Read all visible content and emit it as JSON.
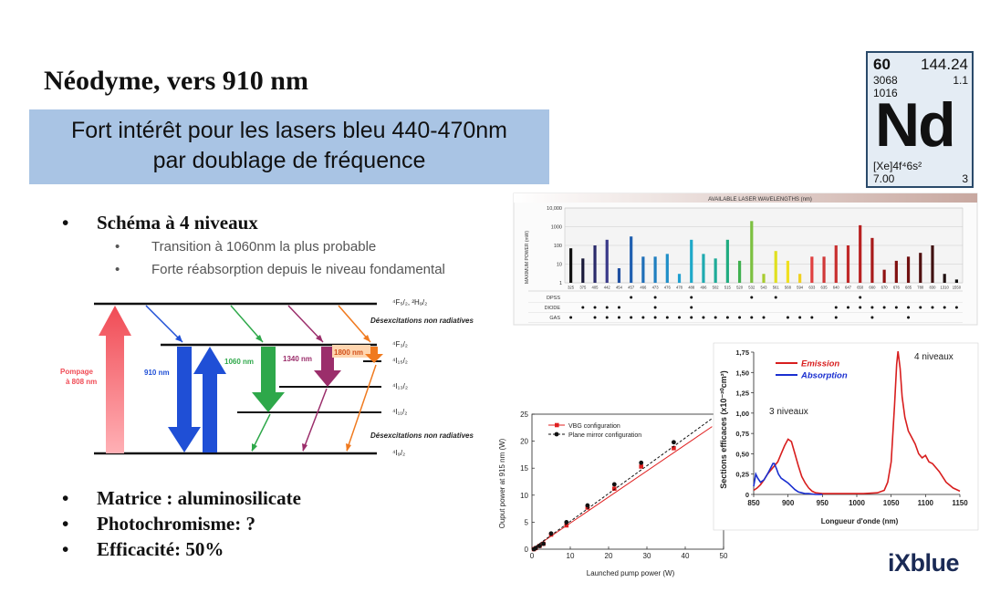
{
  "slide": {
    "title": "Néodyme, vers 910 nm",
    "subtitle_lines": [
      "Fort intérêt pour les lasers bleu 440-470nm",
      "par doublage de fréquence"
    ],
    "scheme_bullet": "Schéma  à 4 niveaux",
    "sub_bullets": [
      "Transition à 1060nm la plus probable",
      "Forte réabsorption depuis le niveau fondamental"
    ],
    "bullets": [
      "Matrice : aluminosilicate",
      "Photochromisme: ?",
      "Efficacité: 50%"
    ],
    "logo_text": "iXblue"
  },
  "element_tile": {
    "atomic_number": "60",
    "atomic_mass": "144.24",
    "boiling_point": "3068",
    "electronegativity": "1.1",
    "melting_point": "1016",
    "symbol": "Nd",
    "configuration": "[Xe]4f⁴6s²",
    "ionization": "7.00",
    "valence": "3"
  },
  "energy_diagram": {
    "level_labels": [
      "⁴F₅/₂, ²H₉/₂",
      "⁴F₃/₂",
      "⁴I₁₅/₂",
      "⁴I₁₃/₂",
      "⁴I₁₁/₂",
      "⁴I₉/₂"
    ],
    "nonradiative_label_top": "Désexcitations non radiatives",
    "nonradiative_label_bottom": "Désexcitations non radiatives",
    "pump_label": [
      "Pompage",
      "à 808 nm"
    ],
    "transitions": [
      "910 nm",
      "1060 nm",
      "1340 nm",
      "1800 nm"
    ],
    "colors": {
      "pump": "#f04b55",
      "blue": "#1f4fd6",
      "green": "#2ea84a",
      "purple": "#9b2e6b",
      "orange": "#f07a1f"
    }
  },
  "chart_data": [
    {
      "type": "bar",
      "title": "AVAILABLE LASER WAVELENGTHS (nm)",
      "ylabel": "MAXIMUM POWER (mW)",
      "yscale": "log",
      "ylim": [
        1,
        10000
      ],
      "yticks": [
        "10,000",
        "1000",
        "100",
        "10",
        "1"
      ],
      "categories": [
        "325",
        "375",
        "405",
        "442",
        "454",
        "457",
        "466",
        "473",
        "476",
        "478",
        "488",
        "496",
        "502",
        "515",
        "520",
        "532",
        "543",
        "561",
        "568",
        "594",
        "633",
        "635",
        "640",
        "647",
        "650",
        "660",
        "670",
        "676",
        "685",
        "780",
        "830",
        "1310",
        "1550"
      ],
      "values": [
        70,
        20,
        100,
        200,
        6,
        300,
        25,
        25,
        35,
        3,
        200,
        35,
        20,
        200,
        15,
        2000,
        3,
        50,
        15,
        3,
        25,
        25,
        100,
        100,
        1200,
        250,
        5,
        15,
        25,
        40,
        100,
        3,
        1.5
      ],
      "bar_colors": [
        "#111111",
        "#1a1a3a",
        "#2a2a6a",
        "#3a3a8a",
        "#1f4fa0",
        "#1f5fb0",
        "#1f6fb8",
        "#1f7fc0",
        "#1f8fc8",
        "#1f9fd0",
        "#1fa8c8",
        "#1faab0",
        "#1fab98",
        "#20ac80",
        "#40b050",
        "#7cc040",
        "#a8cc30",
        "#e0e020",
        "#f0e020",
        "#f0d020",
        "#e04040",
        "#d03838",
        "#c83030",
        "#c02828",
        "#b82020",
        "#a81a1a",
        "#901010",
        "#801010",
        "#701010",
        "#501010",
        "#401010",
        "#201010",
        "#101010"
      ],
      "rows": [
        {
          "name": "DPSS",
          "marks": [
            5,
            7,
            10,
            15,
            17,
            24
          ]
        },
        {
          "name": "DIODE",
          "marks": [
            1,
            2,
            3,
            4,
            7,
            10,
            22,
            23,
            24,
            25,
            26,
            27,
            28,
            29,
            30,
            31,
            32
          ]
        },
        {
          "name": "GAS",
          "marks": [
            0,
            2,
            3,
            4,
            5,
            6,
            7,
            8,
            9,
            10,
            11,
            12,
            13,
            14,
            15,
            16,
            18,
            19,
            20,
            22,
            25,
            28
          ]
        }
      ]
    },
    {
      "type": "line",
      "xlabel": "Launched pump power (W)",
      "ylabel": "Ouput power at 915 nm (W)",
      "xlim": [
        0,
        50
      ],
      "ylim": [
        0,
        25
      ],
      "xticks": [
        0,
        10,
        20,
        30,
        40,
        50
      ],
      "yticks": [
        0,
        5,
        10,
        15,
        20,
        25
      ],
      "legend": "top-left",
      "series": [
        {
          "name": "VBG configuration",
          "color": "#e02020",
          "marker": "square",
          "style": "solid",
          "x": [
            0.5,
            1,
            2,
            3,
            5,
            9,
            14.5,
            21.5,
            28.5,
            37
          ],
          "y": [
            0,
            0.2,
            0.6,
            1,
            2.7,
            4.4,
            7.7,
            11.2,
            15.3,
            18.7
          ],
          "fit": [
            [
              0,
              0
            ],
            [
              47,
              22.7
            ]
          ]
        },
        {
          "name": "Plane mirror configuration",
          "color": "#111111",
          "marker": "circle",
          "style": "dashed",
          "x": [
            0.5,
            1,
            2,
            3,
            5,
            9,
            14.5,
            21.5,
            28.5,
            37
          ],
          "y": [
            0,
            0.2,
            0.6,
            1,
            2.9,
            5,
            8.1,
            12,
            16,
            19.8
          ],
          "fit": [
            [
              0,
              0
            ],
            [
              47,
              24.2
            ]
          ]
        }
      ]
    },
    {
      "type": "line",
      "xlabel": "Longueur d'onde (nm)",
      "ylabel": "Sections efficaces (x10⁻²⁰cm²)",
      "xlim": [
        850,
        1150
      ],
      "ylim": [
        0,
        1.75
      ],
      "xticks": [
        850,
        900,
        950,
        1000,
        1050,
        1100,
        1150
      ],
      "yticks": [
        "0",
        "0,25",
        "0,50",
        "0,75",
        "1,00",
        "1,25",
        "1,50",
        "1,75"
      ],
      "legend": "top-left",
      "annotations": [
        "4 niveaux",
        "3 niveaux"
      ],
      "series": [
        {
          "name": "Emission",
          "color": "#d81e1e",
          "x": [
            850,
            855,
            860,
            865,
            870,
            875,
            880,
            885,
            890,
            895,
            900,
            905,
            910,
            915,
            920,
            925,
            930,
            935,
            940,
            950,
            970,
            990,
            1010,
            1030,
            1040,
            1045,
            1050,
            1055,
            1058,
            1060,
            1063,
            1066,
            1070,
            1075,
            1080,
            1085,
            1090,
            1095,
            1100,
            1105,
            1110,
            1120,
            1130,
            1140,
            1150
          ],
          "y": [
            0.05,
            0.08,
            0.12,
            0.18,
            0.25,
            0.3,
            0.35,
            0.4,
            0.5,
            0.6,
            0.68,
            0.65,
            0.5,
            0.35,
            0.22,
            0.14,
            0.08,
            0.04,
            0.02,
            0.01,
            0.01,
            0.01,
            0.01,
            0.02,
            0.05,
            0.15,
            0.4,
            1.1,
            1.6,
            1.76,
            1.55,
            1.2,
            0.95,
            0.78,
            0.7,
            0.62,
            0.5,
            0.45,
            0.48,
            0.4,
            0.38,
            0.28,
            0.15,
            0.08,
            0.04
          ]
        },
        {
          "name": "Absorption",
          "color": "#1a2fd0",
          "x": [
            850,
            853,
            856,
            860,
            865,
            870,
            875,
            878,
            880,
            883,
            886,
            890,
            895,
            900,
            905,
            910,
            915,
            920,
            925,
            930,
            940,
            950
          ],
          "y": [
            0.1,
            0.25,
            0.2,
            0.15,
            0.18,
            0.25,
            0.33,
            0.38,
            0.38,
            0.32,
            0.25,
            0.2,
            0.17,
            0.14,
            0.1,
            0.06,
            0.03,
            0.02,
            0.01,
            0.01,
            0,
            0
          ]
        }
      ]
    }
  ]
}
